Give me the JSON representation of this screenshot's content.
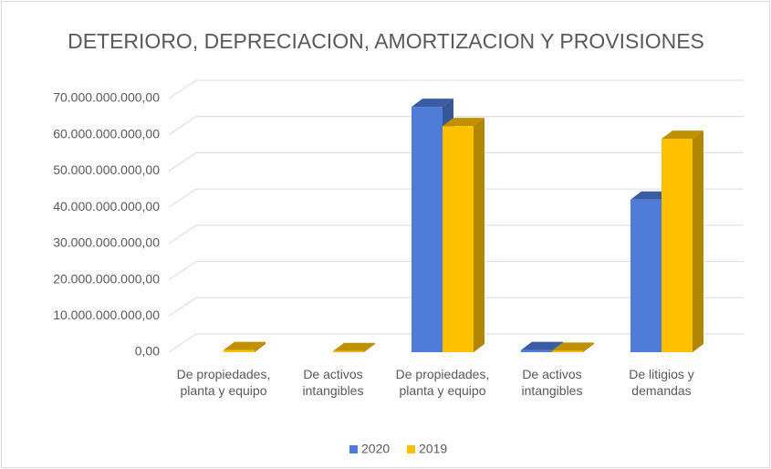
{
  "chart_data": {
    "type": "bar3d",
    "title": "DETERIORO, DEPRECIACION, AMORTIZACION Y PROVISIONES",
    "categories": [
      "De propiedades, planta y equipo",
      "De activos intangibles",
      "De propiedades, planta y equipo",
      "De activos intangibles",
      "De litigios y demandas"
    ],
    "series": [
      {
        "name": "2020",
        "color": "#4f7bd9",
        "values": [
          0,
          0,
          67700000000,
          600000000,
          42100000000
        ]
      },
      {
        "name": "2019",
        "color": "#ffc000",
        "values": [
          600000000,
          300000000,
          62400000000,
          400000000,
          58900000000
        ]
      }
    ],
    "ylim": [
      0,
      70000000000
    ],
    "yticks": [
      {
        "value": 0,
        "label": "0,00"
      },
      {
        "value": 10000000000,
        "label": "10.000.000.000,00"
      },
      {
        "value": 20000000000,
        "label": "20.000.000.000,00"
      },
      {
        "value": 30000000000,
        "label": "30.000.000.000,00"
      },
      {
        "value": 40000000000,
        "label": "40.000.000.000,00"
      },
      {
        "value": 50000000000,
        "label": "50.000.000.000,00"
      },
      {
        "value": 60000000000,
        "label": "60.000.000.000,00"
      },
      {
        "value": 70000000000,
        "label": "70.000.000.000,00"
      }
    ],
    "grid": true,
    "legend": "bottom"
  }
}
